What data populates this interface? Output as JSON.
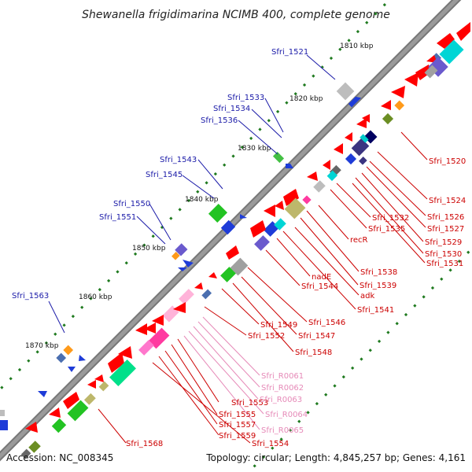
{
  "title": "Shewanella frigidimarina NCIMB 400, complete genome",
  "footer": {
    "accession": "Accession: NC_008345",
    "summary": "Topology: circular; Length: 4,845,257 bp; Genes: 4,161"
  },
  "kbp_labels": [
    "1810 kbp",
    "1820 kbp",
    "1830 kbp",
    "1840 kbp",
    "1850 kbp",
    "1860 kbp",
    "1870 kbp"
  ],
  "labels_outer": [
    "Sfri_1521",
    "Sfri_1533",
    "Sfri_1534",
    "Sfri_1536",
    "Sfri_1543",
    "Sfri_1545",
    "Sfri_1550",
    "Sfri_1551",
    "Sfri_1563"
  ],
  "labels_inner": [
    "Sfri_1520",
    "Sfri_1524",
    "Sfri_1526",
    "Sfri_1527",
    "Sfri_1529",
    "Sfri_1530",
    "Sfri_1531",
    "Sfri_1532",
    "Sfri_1535",
    "recR",
    "Sfri_1538",
    "Sfri_1539",
    "adk",
    "Sfri_1541",
    "nadE",
    "Sfri_1544",
    "Sfri_1546",
    "Sfri_1547",
    "Sfri_1548",
    "Sfri_1549",
    "Sfri_1552",
    "Sfri_1553",
    "Sfri_1555",
    "Sfri_1557",
    "Sfri_1559",
    "Sfri_1554",
    "Sfri_1568"
  ],
  "labels_rna": [
    "Sfri_R0061",
    "Sfri_R0062",
    "Sfri_R0063",
    "Sfri_R0064",
    "Sfri_R0065"
  ],
  "colors": {
    "outer_label": "#1a1aa8",
    "inner_label": "#cc0000",
    "rna_label": "#e68ab8",
    "backbone": "#777777",
    "gc_dots": "#1f7a1f"
  }
}
